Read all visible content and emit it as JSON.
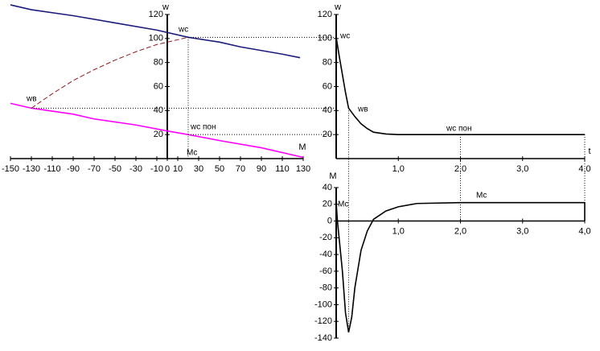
{
  "chart_data": [
    {
      "type": "line",
      "xlabel": "M",
      "ylabel": "w",
      "xlim": [
        -150,
        130
      ],
      "ylim": [
        0,
        120
      ],
      "xticks": [
        -150,
        -130,
        -110,
        -90,
        -70,
        -50,
        -30,
        -10,
        0,
        10,
        30,
        50,
        70,
        90,
        110,
        130
      ],
      "yticks": [
        20,
        40,
        60,
        80,
        100,
        120
      ],
      "series": [
        {
          "color": "#1c1c7c",
          "style": "solid",
          "x": [
            -150,
            -130,
            -90,
            -50,
            -10,
            20,
            50,
            70,
            90,
            110,
            127
          ],
          "values": [
            128,
            124,
            119,
            113,
            107,
            101,
            97,
            93,
            90,
            87,
            84
          ]
        },
        {
          "color": "#ff00ff",
          "style": "solid",
          "x": [
            -150,
            -130,
            -90,
            -70,
            -30,
            0,
            20,
            50,
            90,
            130
          ],
          "values": [
            46,
            42,
            37,
            33,
            28,
            23,
            20,
            15,
            9,
            1
          ]
        },
        {
          "color": "#8b1a1a",
          "style": "dashed",
          "x": [
            -130,
            -110,
            -90,
            -70,
            -50,
            -30,
            -10,
            10,
            20
          ],
          "values": [
            42,
            54,
            65,
            74,
            82,
            89,
            95,
            99,
            101
          ]
        }
      ],
      "annotations": [
        "wc",
        "wв",
        "wc пон",
        "Mc"
      ]
    },
    {
      "type": "line",
      "xlabel": "t",
      "ylabel": "w",
      "xlim": [
        0,
        4
      ],
      "ylim": [
        0,
        120
      ],
      "xticks": [
        {
          "value": 1,
          "label": "1,0"
        },
        {
          "value": 2,
          "label": "2,0"
        },
        {
          "value": 3,
          "label": "3,0"
        },
        {
          "value": 4,
          "label": "4,0"
        }
      ],
      "yticks": [
        20,
        40,
        60,
        80,
        100,
        120
      ],
      "series": [
        {
          "color": "#000000",
          "style": "solid",
          "x": [
            0,
            0.05,
            0.1,
            0.15,
            0.2,
            0.3,
            0.4,
            0.5,
            0.6,
            0.8,
            1.0,
            2.0,
            4.0
          ],
          "values": [
            101,
            85,
            70,
            55,
            42,
            35,
            29,
            25,
            22,
            20.5,
            20,
            20,
            20
          ]
        }
      ],
      "annotations": [
        "wc",
        "wв",
        "wc пон"
      ]
    },
    {
      "type": "line",
      "ylabel": "M",
      "xlim": [
        0,
        4
      ],
      "ylim": [
        -140,
        40
      ],
      "xticks": [
        {
          "value": 1,
          "label": "1,0"
        },
        {
          "value": 2,
          "label": "2,0"
        },
        {
          "value": 3,
          "label": "3,0"
        },
        {
          "value": 4,
          "label": "4,0"
        }
      ],
      "yticks": [
        40,
        20,
        0,
        -20,
        -40,
        -60,
        -80,
        -100,
        -120,
        -140
      ],
      "series": [
        {
          "color": "#000000",
          "style": "solid",
          "x": [
            0,
            0.02,
            0.1,
            0.15,
            0.2,
            0.25,
            0.3,
            0.4,
            0.5,
            0.6,
            0.8,
            1.0,
            1.3,
            2.0,
            4.0,
            4.0
          ],
          "values": [
            22,
            0,
            -60,
            -110,
            -133,
            -115,
            -80,
            -35,
            -12,
            2,
            12,
            17,
            21,
            22,
            22,
            0
          ]
        }
      ],
      "annotations": [
        "Mc",
        "Mc"
      ]
    }
  ]
}
